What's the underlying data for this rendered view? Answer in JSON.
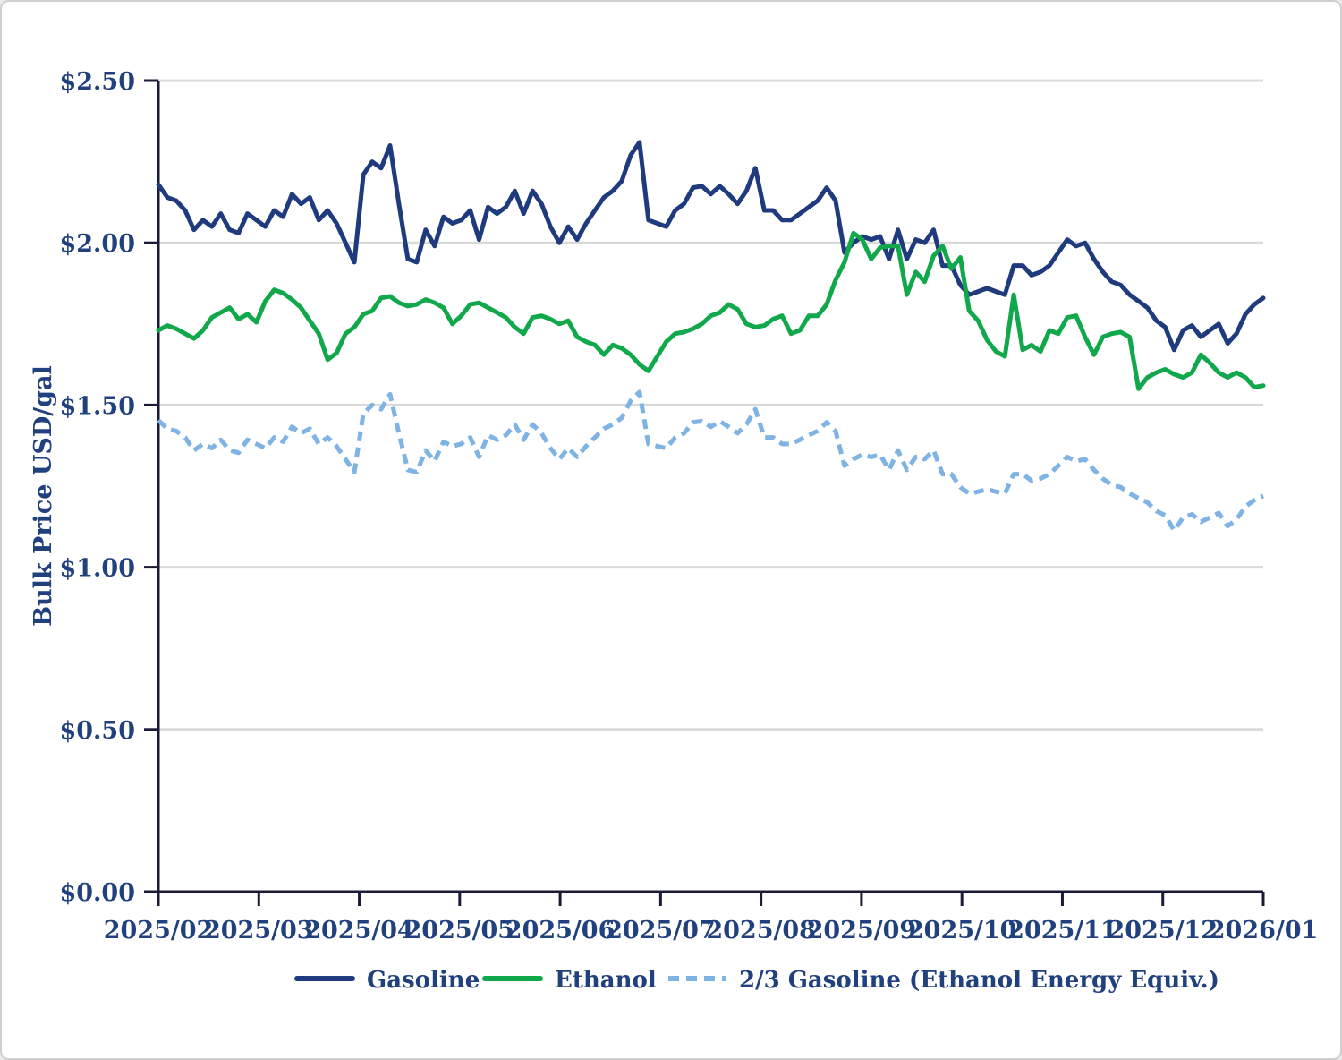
{
  "chart_data": {
    "type": "line",
    "title": "",
    "ylabel": "Bulk Price USD/gal",
    "xlabel": "",
    "ylim": [
      0,
      2.5
    ],
    "grid": "horizontal",
    "legend_position": "bottom",
    "y_ticks": [
      {
        "label": "$0.00",
        "value": 0
      },
      {
        "label": "$0.50",
        "value": 0.5
      },
      {
        "label": "$1.00",
        "value": 1.0
      },
      {
        "label": "$1.50",
        "value": 1.5
      },
      {
        "label": "$2.00",
        "value": 2.0
      },
      {
        "label": "$2.50",
        "value": 2.5
      }
    ],
    "x_tick_labels": [
      "2025/02",
      "2025/03",
      "2025/04",
      "2025/05",
      "2025/06",
      "2025/07",
      "2025/08",
      "2025/09",
      "2025/10",
      "2025/11",
      "2025/12",
      "2026/01"
    ],
    "colors": {
      "grid": "#D9D9D9",
      "axis": "#1B1B38",
      "text": "#21407E",
      "background": "#FFFFFF"
    },
    "series": [
      {
        "name": "Gasoline",
        "color": "#1F3B7D",
        "style": "solid",
        "values": [
          2.18,
          2.14,
          2.13,
          2.1,
          2.04,
          2.07,
          2.05,
          2.09,
          2.04,
          2.03,
          2.09,
          2.07,
          2.05,
          2.1,
          2.08,
          2.15,
          2.12,
          2.14,
          2.07,
          2.1,
          2.06,
          2.0,
          1.94,
          2.21,
          2.25,
          2.23,
          2.3,
          2.12,
          1.95,
          1.94,
          2.04,
          1.99,
          2.08,
          2.06,
          2.07,
          2.1,
          2.01,
          2.11,
          2.09,
          2.11,
          2.16,
          2.09,
          2.16,
          2.12,
          2.05,
          2.0,
          2.05,
          2.01,
          2.06,
          2.1,
          2.14,
          2.16,
          2.19,
          2.27,
          2.31,
          2.07,
          2.06,
          2.05,
          2.1,
          2.12,
          2.17,
          2.175,
          2.15,
          2.175,
          2.15,
          2.12,
          2.16,
          2.23,
          2.1,
          2.1,
          2.07,
          2.07,
          2.09,
          2.11,
          2.13,
          2.17,
          2.13,
          1.97,
          2.0,
          2.02,
          2.01,
          2.02,
          1.95,
          2.04,
          1.95,
          2.01,
          2.0,
          2.04,
          1.93,
          1.93,
          1.87,
          1.84,
          1.85,
          1.86,
          1.85,
          1.84,
          1.93,
          1.93,
          1.9,
          1.91,
          1.93,
          1.97,
          2.01,
          1.99,
          2.0,
          1.95,
          1.91,
          1.88,
          1.87,
          1.84,
          1.82,
          1.8,
          1.76,
          1.74,
          1.67,
          1.73,
          1.745,
          1.71,
          1.73,
          1.75,
          1.69,
          1.72,
          1.78,
          1.81,
          1.83
        ]
      },
      {
        "name": "Ethanol",
        "color": "#10A84B",
        "style": "solid",
        "values": [
          1.73,
          1.745,
          1.735,
          1.72,
          1.705,
          1.73,
          1.77,
          1.785,
          1.8,
          1.765,
          1.78,
          1.755,
          1.82,
          1.855,
          1.845,
          1.825,
          1.8,
          1.76,
          1.72,
          1.64,
          1.66,
          1.72,
          1.74,
          1.78,
          1.79,
          1.83,
          1.835,
          1.815,
          1.805,
          1.81,
          1.825,
          1.815,
          1.8,
          1.75,
          1.775,
          1.81,
          1.815,
          1.8,
          1.785,
          1.77,
          1.74,
          1.72,
          1.77,
          1.775,
          1.765,
          1.75,
          1.76,
          1.71,
          1.695,
          1.685,
          1.655,
          1.685,
          1.675,
          1.655,
          1.625,
          1.605,
          1.65,
          1.695,
          1.72,
          1.725,
          1.735,
          1.75,
          1.775,
          1.785,
          1.81,
          1.795,
          1.75,
          1.74,
          1.745,
          1.765,
          1.775,
          1.72,
          1.73,
          1.775,
          1.775,
          1.81,
          1.885,
          1.94,
          2.03,
          2.01,
          1.95,
          1.985,
          1.99,
          1.99,
          1.84,
          1.91,
          1.88,
          1.96,
          1.99,
          1.92,
          1.955,
          1.79,
          1.76,
          1.7,
          1.665,
          1.65,
          1.84,
          1.67,
          1.685,
          1.665,
          1.73,
          1.72,
          1.77,
          1.775,
          1.71,
          1.655,
          1.71,
          1.72,
          1.725,
          1.71,
          1.55,
          1.585,
          1.6,
          1.61,
          1.595,
          1.585,
          1.6,
          1.655,
          1.63,
          1.6,
          1.585,
          1.6,
          1.585,
          1.555,
          1.56
        ]
      },
      {
        "name": "2/3 Gasoline (Ethanol Energy Equiv.)",
        "color": "#7FB3E3",
        "style": "dashed",
        "values": [
          1.453,
          1.427,
          1.42,
          1.4,
          1.36,
          1.38,
          1.367,
          1.393,
          1.36,
          1.353,
          1.393,
          1.38,
          1.367,
          1.4,
          1.387,
          1.433,
          1.413,
          1.427,
          1.38,
          1.4,
          1.373,
          1.333,
          1.293,
          1.473,
          1.5,
          1.487,
          1.533,
          1.413,
          1.3,
          1.293,
          1.36,
          1.327,
          1.387,
          1.373,
          1.38,
          1.4,
          1.34,
          1.407,
          1.393,
          1.407,
          1.44,
          1.393,
          1.44,
          1.413,
          1.367,
          1.333,
          1.367,
          1.34,
          1.373,
          1.4,
          1.427,
          1.44,
          1.46,
          1.513,
          1.54,
          1.38,
          1.373,
          1.367,
          1.4,
          1.413,
          1.447,
          1.45,
          1.433,
          1.45,
          1.433,
          1.413,
          1.44,
          1.487,
          1.4,
          1.4,
          1.38,
          1.38,
          1.393,
          1.407,
          1.42,
          1.447,
          1.42,
          1.313,
          1.333,
          1.347,
          1.34,
          1.347,
          1.3,
          1.36,
          1.3,
          1.34,
          1.333,
          1.36,
          1.287,
          1.287,
          1.247,
          1.227,
          1.233,
          1.24,
          1.233,
          1.227,
          1.287,
          1.287,
          1.267,
          1.273,
          1.287,
          1.313,
          1.34,
          1.327,
          1.333,
          1.3,
          1.273,
          1.253,
          1.247,
          1.227,
          1.213,
          1.2,
          1.173,
          1.16,
          1.113,
          1.153,
          1.163,
          1.14,
          1.153,
          1.167,
          1.127,
          1.147,
          1.187,
          1.207,
          1.22
        ]
      }
    ]
  }
}
